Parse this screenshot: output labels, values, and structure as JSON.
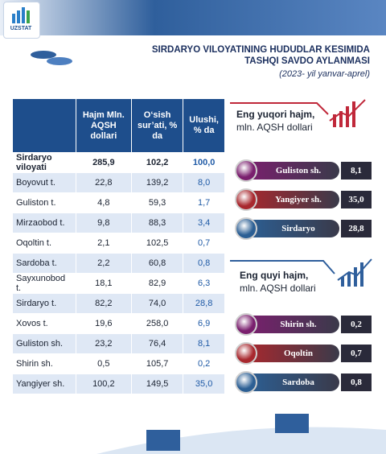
{
  "header": {
    "logo": "UZSTAT",
    "title_line1": "SIRDARYO VILOYATINING HUDUDLAR KESIMIDA",
    "title_line2": "TASHQI SAVDO AYLANMASI",
    "subtitle": "(2023- yil yanvar-aprel)"
  },
  "table": {
    "columns": [
      "",
      "Hajm Mln. AQSH dollari",
      "O‘sish sur’ati, % da",
      "Ulushi, % da"
    ],
    "rows": [
      [
        "Sirdaryo viloyati",
        "285,9",
        "102,2",
        "100,0"
      ],
      [
        "Boyovut t.",
        "22,8",
        "139,2",
        "8,0"
      ],
      [
        "Guliston t.",
        "4,8",
        "59,3",
        "1,7"
      ],
      [
        "Mirzaobod t.",
        "9,8",
        "88,3",
        "3,4"
      ],
      [
        "Oqoltin t.",
        "2,1",
        "102,5",
        "0,7"
      ],
      [
        "Sardoba t.",
        "2,2",
        "60,8",
        "0,8"
      ],
      [
        "Sayxunobod t.",
        "18,1",
        "82,9",
        "6,3"
      ],
      [
        "Sirdaryo t.",
        "82,2",
        "74,0",
        "28,8"
      ],
      [
        "Xovos t.",
        "19,6",
        "258,0",
        "6,9"
      ],
      [
        "Guliston sh.",
        "23,2",
        "76,4",
        "8,1"
      ],
      [
        "Shirin sh.",
        "0,5",
        "105,7",
        "0,2"
      ],
      [
        "Yangiyer sh.",
        "100,2",
        "149,5",
        "35,0"
      ]
    ]
  },
  "top": {
    "title": "Eng yuqori hajm,",
    "subtitle": "mln. AQSH dollari",
    "items": [
      {
        "name": "Guliston sh.",
        "value": "8,1"
      },
      {
        "name": "Yangiyer sh.",
        "value": "35,0"
      },
      {
        "name": "Sirdaryo",
        "value": "28,8"
      }
    ]
  },
  "bottom": {
    "title": "Eng quyi hajm,",
    "subtitle": "mln. AQSH dollari",
    "items": [
      {
        "name": "Shirin sh.",
        "value": "0,2"
      },
      {
        "name": "Oqoltin",
        "value": "0,7"
      },
      {
        "name": "Sardoba",
        "value": "0,8"
      }
    ]
  }
}
